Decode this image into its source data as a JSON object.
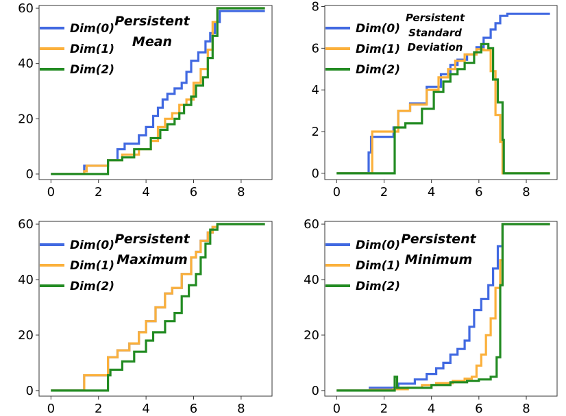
{
  "chart_data": [
    {
      "type": "line",
      "title": [
        "Persistent",
        "Mean"
      ],
      "xlim": [
        -0.5,
        9.3
      ],
      "ylim": [
        -2,
        61
      ],
      "xticks": [
        "0",
        "2",
        "4",
        "6",
        "8"
      ],
      "xtick_values": [
        0,
        2,
        4,
        6,
        8
      ],
      "yticks": [
        "0",
        "20",
        "40",
        "60"
      ],
      "ytick_values": [
        0,
        20,
        40,
        60
      ],
      "legend": [
        "Dim(0)",
        "Dim(1)",
        "Dim(2)"
      ],
      "series": [
        {
          "name": "Dim(0)",
          "color": "#4169e1",
          "step": true,
          "x": [
            0,
            1.4,
            2.4,
            2.8,
            3.1,
            3.7,
            4.0,
            4.3,
            4.5,
            4.7,
            4.9,
            5.2,
            5.5,
            5.7,
            5.9,
            6.2,
            6.5,
            6.7,
            6.9,
            7.1,
            9.0
          ],
          "y": [
            0,
            3,
            5,
            9,
            11,
            14,
            17,
            21,
            24,
            27,
            29,
            31,
            33,
            37,
            41,
            44,
            48,
            51,
            55,
            59,
            59
          ]
        },
        {
          "name": "Dim(1)",
          "color": "#fbb03b",
          "step": true,
          "x": [
            0,
            1.4,
            1.5,
            2.4,
            3.0,
            3.7,
            4.2,
            4.5,
            4.8,
            5.1,
            5.4,
            5.7,
            6.0,
            6.3,
            6.6,
            6.8,
            7.0,
            9.0
          ],
          "y": [
            0,
            1,
            3,
            5,
            7,
            9,
            12,
            17,
            20,
            22,
            25,
            27,
            33,
            38,
            45,
            55,
            60,
            60
          ]
        },
        {
          "name": "Dim(2)",
          "color": "#228b22",
          "step": true,
          "x": [
            0,
            2.4,
            3.0,
            3.5,
            4.2,
            4.6,
            4.9,
            5.2,
            5.4,
            5.6,
            5.9,
            6.1,
            6.4,
            6.6,
            6.8,
            7.0,
            9.0
          ],
          "y": [
            0,
            5,
            6,
            9,
            13,
            16,
            18,
            20,
            22,
            25,
            28,
            32,
            35,
            42,
            50,
            60,
            60
          ]
        }
      ]
    },
    {
      "type": "line",
      "title": [
        "Persistent",
        "Standard",
        "Deviation"
      ],
      "xlim": [
        -0.5,
        9.3
      ],
      "ylim": [
        -0.3,
        8.05
      ],
      "xticks": [
        "0",
        "2",
        "4",
        "6",
        "8"
      ],
      "xtick_values": [
        0,
        2,
        4,
        6,
        8
      ],
      "yticks": [
        "0",
        "2",
        "4",
        "6",
        "8"
      ],
      "ytick_values": [
        0,
        2,
        4,
        6,
        8
      ],
      "legend": [
        "Dim(0)",
        "Dim(1)",
        "Dim(2)"
      ],
      "series": [
        {
          "name": "Dim(0)",
          "color": "#4169e1",
          "step": true,
          "x": [
            0,
            1.35,
            1.45,
            2.4,
            2.6,
            3.1,
            3.8,
            4.4,
            4.8,
            5.1,
            5.5,
            5.9,
            6.2,
            6.5,
            6.7,
            6.9,
            7.2,
            9.0
          ],
          "y": [
            0,
            1.0,
            1.75,
            2.2,
            3.0,
            3.35,
            4.15,
            4.75,
            5.2,
            5.45,
            5.7,
            6.05,
            6.5,
            6.9,
            7.2,
            7.55,
            7.65,
            7.65
          ]
        },
        {
          "name": "Dim(1)",
          "color": "#fbb03b",
          "step": true,
          "x": [
            0,
            1.4,
            1.5,
            2.4,
            2.6,
            3.1,
            3.8,
            4.3,
            4.7,
            5.0,
            5.4,
            5.9,
            6.2,
            6.5,
            6.7,
            6.9,
            7.0,
            9.0
          ],
          "y": [
            0,
            0,
            2.0,
            2.0,
            3.0,
            3.3,
            4.0,
            4.6,
            5.0,
            5.4,
            5.7,
            5.95,
            5.9,
            4.9,
            2.8,
            1.5,
            0,
            0
          ]
        },
        {
          "name": "Dim(2)",
          "color": "#228b22",
          "step": true,
          "x": [
            0,
            2.4,
            2.45,
            2.5,
            2.9,
            3.6,
            4.1,
            4.5,
            4.8,
            5.1,
            5.4,
            5.8,
            6.1,
            6.4,
            6.6,
            6.8,
            7.0,
            7.05,
            9.0
          ],
          "y": [
            0,
            0,
            2.2,
            2.2,
            2.4,
            3.1,
            3.9,
            4.4,
            4.75,
            5.0,
            5.3,
            5.8,
            6.2,
            6.0,
            4.5,
            3.4,
            1.6,
            0,
            0
          ]
        }
      ]
    },
    {
      "type": "line",
      "title": [
        "Persistent",
        "Maximum"
      ],
      "xlim": [
        -0.5,
        9.3
      ],
      "ylim": [
        -2,
        61
      ],
      "xticks": [
        "0",
        "2",
        "4",
        "6",
        "8"
      ],
      "xtick_values": [
        0,
        2,
        4,
        6,
        8
      ],
      "yticks": [
        "0",
        "20",
        "40",
        "60"
      ],
      "ytick_values": [
        0,
        20,
        40,
        60
      ],
      "legend": [
        "Dim(0)",
        "Dim(1)",
        "Dim(2)"
      ],
      "series": [
        {
          "name": "Dim(0)",
          "color": "#4169e1",
          "step": true,
          "x": [
            0,
            1.4,
            2.4,
            2.8,
            3.3,
            3.7,
            4.0,
            4.4,
            4.8,
            5.1,
            5.5,
            5.9,
            6.1,
            6.3,
            6.6,
            6.8,
            7.0,
            9.0
          ],
          "y": [
            0,
            5.5,
            12,
            14.5,
            17,
            21,
            25,
            30,
            35,
            37,
            42,
            48,
            50,
            54,
            57,
            59,
            60,
            60
          ]
        },
        {
          "name": "Dim(1)",
          "color": "#fbb03b",
          "step": true,
          "x": [
            0,
            1.4,
            2.4,
            2.8,
            3.3,
            3.7,
            4.0,
            4.4,
            4.8,
            5.1,
            5.5,
            5.9,
            6.1,
            6.3,
            6.6,
            6.8,
            7.0,
            9.0
          ],
          "y": [
            0,
            5.5,
            12,
            14.5,
            17,
            21,
            25,
            30,
            35,
            37,
            42,
            48,
            50,
            54,
            57,
            59,
            60,
            60
          ]
        },
        {
          "name": "Dim(2)",
          "color": "#228b22",
          "step": true,
          "x": [
            0,
            2.4,
            2.5,
            3.0,
            3.5,
            4.0,
            4.3,
            4.8,
            5.2,
            5.5,
            5.8,
            6.1,
            6.3,
            6.5,
            6.7,
            7.0,
            9.0
          ],
          "y": [
            0,
            5.5,
            7.5,
            10.5,
            14,
            18,
            21,
            25,
            28,
            34,
            38,
            42,
            48,
            53,
            58,
            60,
            60
          ]
        }
      ]
    },
    {
      "type": "line",
      "title": [
        "Persistent",
        "Minimum"
      ],
      "xlim": [
        -0.5,
        9.3
      ],
      "ylim": [
        -2,
        61
      ],
      "xticks": [
        "0",
        "2",
        "4",
        "6",
        "8"
      ],
      "xtick_values": [
        0,
        2,
        4,
        6,
        8
      ],
      "yticks": [
        "0",
        "20",
        "40",
        "60"
      ],
      "ytick_values": [
        0,
        20,
        40,
        60
      ],
      "legend": [
        "Dim(0)",
        "Dim(1)",
        "Dim(2)"
      ],
      "series": [
        {
          "name": "Dim(0)",
          "color": "#4169e1",
          "step": true,
          "x": [
            0,
            1.4,
            2.6,
            3.3,
            3.8,
            4.2,
            4.5,
            4.8,
            5.1,
            5.4,
            5.6,
            5.8,
            6.1,
            6.4,
            6.6,
            6.8,
            7.0,
            9.0
          ],
          "y": [
            0,
            1,
            2.5,
            4,
            6,
            8,
            10,
            13,
            15,
            18,
            23,
            29,
            33,
            38,
            44,
            52,
            60,
            60
          ]
        },
        {
          "name": "Dim(1)",
          "color": "#fbb03b",
          "step": true,
          "x": [
            0,
            1.4,
            2.4,
            3.0,
            3.6,
            4.2,
            4.9,
            5.4,
            5.7,
            5.9,
            6.1,
            6.3,
            6.5,
            6.7,
            6.9,
            7.0,
            9.0
          ],
          "y": [
            0,
            0.3,
            0.5,
            1,
            2,
            2.7,
            3.5,
            4.3,
            5,
            9,
            13,
            20,
            26,
            37,
            47,
            60,
            60
          ]
        },
        {
          "name": "Dim(2)",
          "color": "#228b22",
          "step": true,
          "x": [
            0,
            2.4,
            2.45,
            2.55,
            3.2,
            4.0,
            4.8,
            5.5,
            6.0,
            6.5,
            6.75,
            6.9,
            7.0,
            9.0
          ],
          "y": [
            0,
            0,
            5,
            1,
            1,
            2,
            3,
            3.5,
            4,
            5,
            12,
            38,
            60,
            60
          ]
        }
      ]
    }
  ]
}
